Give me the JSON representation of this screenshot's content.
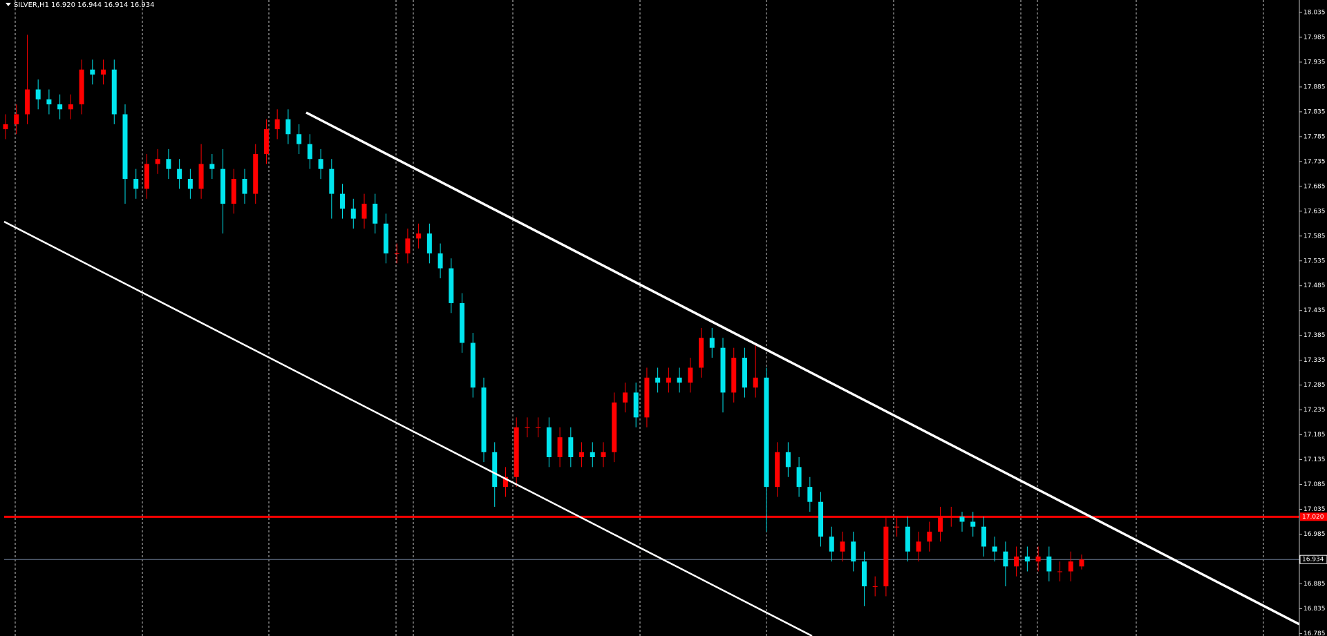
{
  "chart_data": {
    "type": "candlestick",
    "title": "SILVER,H1",
    "subtitle": "16.920 16.944 16.914 16.934",
    "up_color": "#ff0000",
    "down_color": "#00e5ee",
    "ylim": [
      16.78,
      18.06
    ],
    "yticks": [
      18.035,
      17.985,
      17.935,
      17.885,
      17.835,
      17.785,
      17.735,
      17.685,
      17.635,
      17.585,
      17.535,
      17.485,
      17.435,
      17.385,
      17.335,
      17.285,
      17.235,
      17.185,
      17.135,
      17.085,
      17.035,
      16.985,
      16.935,
      16.885,
      16.835,
      16.785
    ],
    "hlines": [
      {
        "value": 17.02,
        "label": "17.020",
        "color": "#ff0000"
      },
      {
        "value": 16.934,
        "label": "16.934",
        "color": "#6f7f99"
      }
    ],
    "open": [
      17.8,
      17.81,
      17.83,
      17.88,
      17.86,
      17.85,
      17.84,
      17.85,
      17.92,
      17.91,
      17.92,
      17.83,
      17.7,
      17.68,
      17.73,
      17.74,
      17.72,
      17.7,
      17.68,
      17.73,
      17.72,
      17.65,
      17.7,
      17.67,
      17.75,
      17.8,
      17.82,
      17.79,
      17.77,
      17.74,
      17.72,
      17.67,
      17.64,
      17.62,
      17.65,
      17.61,
      17.55,
      17.55,
      17.58,
      17.59,
      17.55,
      17.52,
      17.45,
      17.37,
      17.28,
      17.15,
      17.08,
      17.1,
      17.2,
      17.2,
      17.2,
      17.14,
      17.18,
      17.14,
      17.15,
      17.14,
      17.15,
      17.25,
      17.27,
      17.22,
      17.3,
      17.29,
      17.3,
      17.29,
      17.32,
      17.38,
      17.36,
      17.27,
      17.34,
      17.28,
      17.3,
      17.08,
      17.15,
      17.12,
      17.08,
      17.05,
      16.98,
      16.95,
      16.97,
      16.93,
      16.88,
      16.88,
      17.0,
      17.0,
      16.95,
      16.97,
      16.99,
      17.02,
      17.02,
      17.01,
      17.0,
      16.96,
      16.95,
      16.92,
      16.94,
      16.93,
      16.94,
      16.91,
      16.91,
      16.92
    ],
    "high": [
      17.83,
      17.85,
      17.99,
      17.9,
      17.88,
      17.87,
      17.87,
      17.94,
      17.94,
      17.94,
      17.94,
      17.85,
      17.72,
      17.75,
      17.76,
      17.76,
      17.74,
      17.72,
      17.77,
      17.75,
      17.76,
      17.72,
      17.72,
      17.77,
      17.82,
      17.84,
      17.84,
      17.81,
      17.79,
      17.76,
      17.74,
      17.69,
      17.66,
      17.67,
      17.67,
      17.63,
      17.57,
      17.6,
      17.61,
      17.61,
      17.57,
      17.54,
      17.47,
      17.39,
      17.3,
      17.17,
      17.12,
      17.22,
      17.22,
      17.22,
      17.22,
      17.2,
      17.2,
      17.17,
      17.17,
      17.17,
      17.27,
      17.29,
      17.29,
      17.32,
      17.32,
      17.32,
      17.32,
      17.34,
      17.4,
      17.4,
      17.38,
      17.36,
      17.36,
      17.37,
      17.32,
      17.17,
      17.17,
      17.14,
      17.1,
      17.07,
      17.0,
      16.99,
      16.99,
      16.95,
      16.9,
      17.02,
      17.02,
      17.02,
      16.99,
      17.01,
      17.04,
      17.04,
      17.03,
      17.03,
      17.02,
      16.98,
      16.97,
      16.96,
      16.96,
      16.96,
      16.96,
      16.93,
      16.95,
      16.944
    ],
    "low": [
      17.78,
      17.79,
      17.81,
      17.84,
      17.83,
      17.82,
      17.82,
      17.83,
      17.89,
      17.89,
      17.81,
      17.65,
      17.66,
      17.66,
      17.71,
      17.7,
      17.68,
      17.66,
      17.66,
      17.7,
      17.59,
      17.63,
      17.65,
      17.65,
      17.73,
      17.78,
      17.77,
      17.75,
      17.72,
      17.7,
      17.62,
      17.62,
      17.6,
      17.6,
      17.59,
      17.53,
      17.53,
      17.53,
      17.56,
      17.53,
      17.5,
      17.43,
      17.35,
      17.26,
      17.13,
      17.04,
      17.06,
      17.08,
      17.18,
      17.18,
      17.12,
      17.12,
      17.12,
      17.12,
      17.12,
      17.12,
      17.13,
      17.23,
      17.2,
      17.2,
      17.27,
      17.27,
      17.27,
      17.27,
      17.3,
      17.34,
      17.23,
      17.25,
      17.26,
      17.26,
      16.99,
      17.06,
      17.1,
      17.06,
      17.03,
      16.96,
      16.93,
      16.93,
      16.91,
      16.84,
      16.86,
      16.86,
      16.98,
      16.93,
      16.93,
      16.95,
      16.97,
      17.0,
      16.99,
      16.98,
      16.94,
      16.93,
      16.88,
      16.9,
      16.91,
      16.91,
      16.89,
      16.89,
      16.89,
      16.914
    ],
    "close": [
      17.81,
      17.83,
      17.88,
      17.86,
      17.85,
      17.84,
      17.85,
      17.92,
      17.91,
      17.92,
      17.83,
      17.7,
      17.68,
      17.73,
      17.74,
      17.72,
      17.7,
      17.68,
      17.73,
      17.72,
      17.65,
      17.7,
      17.67,
      17.75,
      17.8,
      17.82,
      17.79,
      17.77,
      17.74,
      17.72,
      17.67,
      17.64,
      17.62,
      17.65,
      17.61,
      17.55,
      17.55,
      17.58,
      17.59,
      17.55,
      17.52,
      17.45,
      17.37,
      17.28,
      17.15,
      17.08,
      17.1,
      17.2,
      17.2,
      17.2,
      17.14,
      17.18,
      17.14,
      17.15,
      17.14,
      17.15,
      17.25,
      17.27,
      17.22,
      17.3,
      17.29,
      17.3,
      17.29,
      17.32,
      17.38,
      17.36,
      17.27,
      17.34,
      17.28,
      17.3,
      17.08,
      17.15,
      17.12,
      17.08,
      17.05,
      16.98,
      16.95,
      16.97,
      16.93,
      16.88,
      16.88,
      17.0,
      17.0,
      16.95,
      16.97,
      16.99,
      17.02,
      17.02,
      17.01,
      17.0,
      16.96,
      16.95,
      16.92,
      16.94,
      16.93,
      16.94,
      16.91,
      16.91,
      16.93,
      16.934
    ]
  }
}
